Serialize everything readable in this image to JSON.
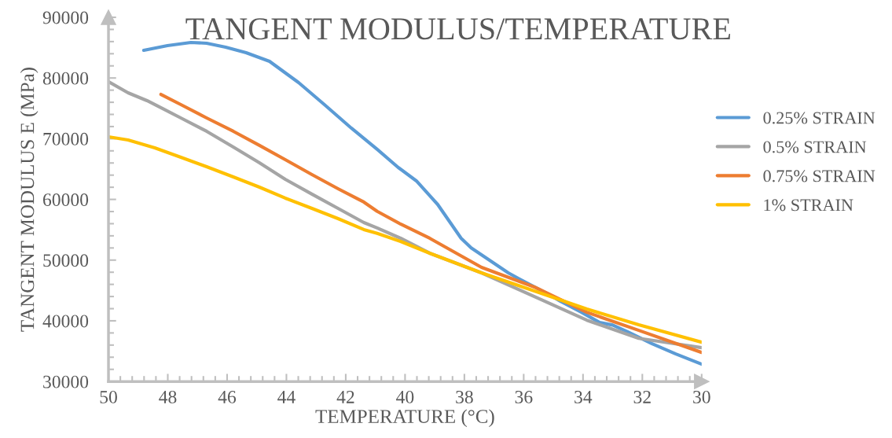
{
  "chart_data": {
    "type": "line",
    "title": "TANGENT MODULUS/TEMPERATURE",
    "xlabel": "TEMPERATURE (°C)",
    "ylabel": "TANGENT MODULUS E (MPa)",
    "xlim": [
      50,
      30
    ],
    "xticks": [
      50,
      48,
      46,
      44,
      42,
      40,
      38,
      36,
      34,
      32,
      30
    ],
    "ylim": [
      30000,
      90000
    ],
    "yticks": [
      30000,
      40000,
      50000,
      60000,
      70000,
      80000,
      90000
    ],
    "grid": false,
    "legend": "right",
    "line_style": "solid",
    "marker": "none",
    "series": [
      {
        "name": "0.25% STRAIN",
        "color": "#5b9bd5",
        "x": [
          48.81,
          48.01,
          47.22,
          46.69,
          46.05,
          45.36,
          44.57,
          43.59,
          42.72,
          41.81,
          40.94,
          40.23,
          39.62,
          38.9,
          38.11,
          37.77,
          37.1,
          36.52,
          36.17,
          35.11,
          34.77,
          34.05,
          33.44,
          33.0,
          32.5,
          31.67,
          30.87,
          30.0
        ],
        "values": [
          84560,
          85340,
          85860,
          85730,
          85080,
          84170,
          82750,
          79250,
          75620,
          71740,
          68240,
          65260,
          63060,
          59170,
          53600,
          52000,
          49800,
          47900,
          46960,
          44240,
          43230,
          41400,
          39720,
          39300,
          38200,
          36220,
          34530,
          32850
        ]
      },
      {
        "name": "0.5% STRAIN",
        "color": "#a5a5a5",
        "x": [
          50.0,
          49.34,
          48.7,
          48.17,
          47.56,
          46.69,
          45.79,
          44.91,
          44.04,
          43.14,
          42.26,
          41.39,
          40.94,
          40.15,
          39.17,
          37.42,
          35.64,
          33.87,
          32.12,
          30.0
        ],
        "values": [
          79400,
          77560,
          76270,
          74970,
          73420,
          71220,
          68630,
          66040,
          63320,
          60860,
          58520,
          56190,
          55300,
          53600,
          51140,
          47900,
          44000,
          40100,
          37120,
          35570
        ]
      },
      {
        "name": "0.75% STRAIN",
        "color": "#ed7d31",
        "x": [
          48.23,
          47.56,
          46.69,
          45.79,
          44.91,
          44.04,
          43.14,
          42.26,
          41.39,
          40.94,
          40.15,
          39.17,
          37.42,
          35.64,
          33.87,
          32.12,
          30.0
        ],
        "values": [
          77300,
          75620,
          73420,
          71220,
          68890,
          66550,
          64090,
          61760,
          59560,
          58030,
          55930,
          53600,
          48800,
          45570,
          41400,
          38420,
          34790
        ]
      },
      {
        "name": "1% STRAIN",
        "color": "#ffc000",
        "x": [
          50.0,
          49.34,
          48.44,
          47.56,
          46.69,
          45.79,
          44.91,
          44.04,
          43.14,
          42.26,
          41.39,
          40.94,
          40.15,
          39.17,
          37.42,
          35.64,
          33.87,
          32.12,
          30.0
        ],
        "values": [
          70310,
          69790,
          68500,
          66940,
          65390,
          63700,
          62020,
          60210,
          58520,
          56840,
          55030,
          54400,
          53080,
          51140,
          47900,
          44920,
          41930,
          39340,
          36480
        ]
      }
    ]
  }
}
